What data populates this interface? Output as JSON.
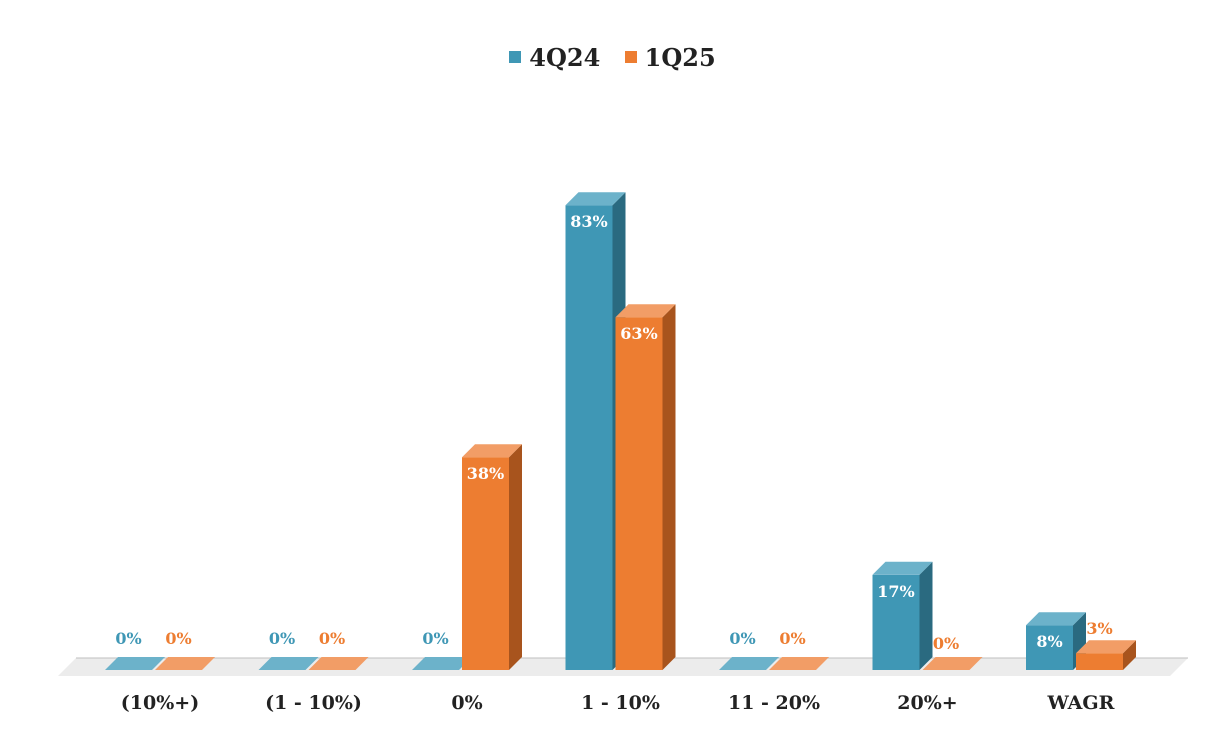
{
  "legend": {
    "series1": "4Q24",
    "series2": "1Q25"
  },
  "colors": {
    "series1": "#3f97b5",
    "series2": "#ed7d31"
  },
  "chart_data": {
    "type": "bar",
    "categories": [
      "(10%+)",
      "(1 - 10%)",
      "0%",
      "1 - 10%",
      "11 - 20%",
      "20%+",
      "WAGR"
    ],
    "series": [
      {
        "name": "4Q24",
        "values": [
          0,
          0,
          0,
          83,
          0,
          17,
          8
        ],
        "labels": [
          "0%",
          "0%",
          "0%",
          "83%",
          "0%",
          "17%",
          "8%"
        ]
      },
      {
        "name": "1Q25",
        "values": [
          0,
          0,
          38,
          63,
          0,
          0,
          3
        ],
        "labels": [
          "0%",
          "0%",
          "38%",
          "63%",
          "0%",
          "0%",
          "3%"
        ]
      }
    ],
    "title": "",
    "xlabel": "",
    "ylabel": "",
    "ylim": [
      0,
      90
    ],
    "grid": false,
    "legend_position": "top-center",
    "style": "3d-column"
  }
}
